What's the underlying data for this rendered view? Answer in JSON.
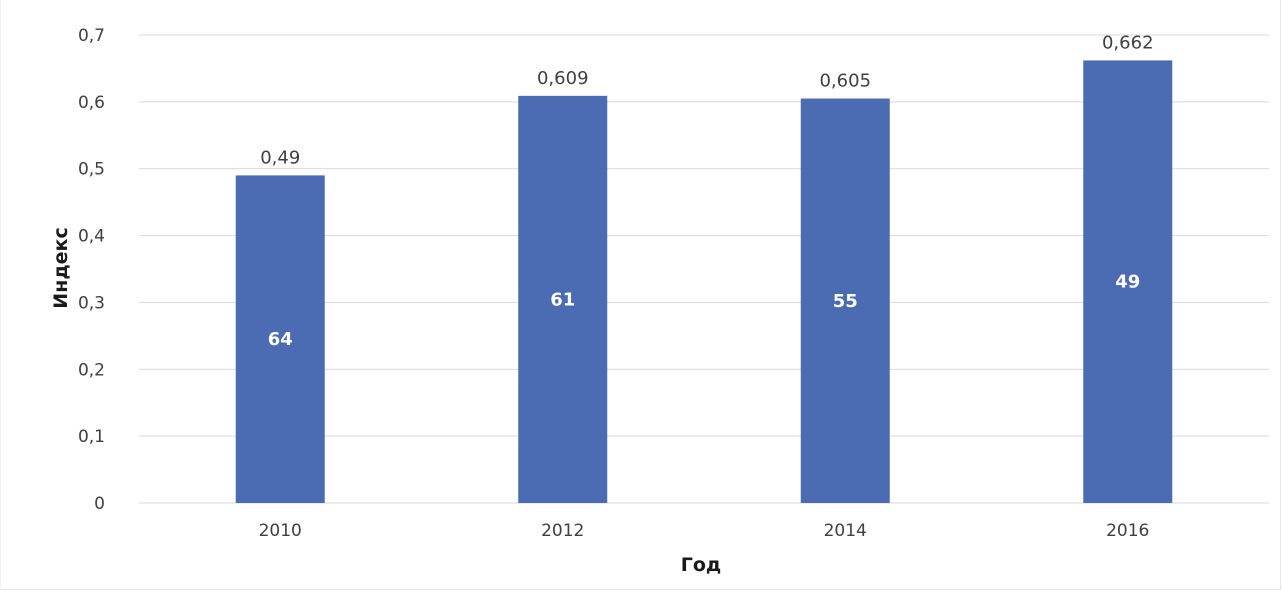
{
  "chart_data": {
    "type": "bar",
    "categories": [
      "2010",
      "2012",
      "2014",
      "2016"
    ],
    "values": [
      0.49,
      0.609,
      0.605,
      0.662
    ],
    "value_labels": [
      "0,49",
      "0,609",
      "0,605",
      "0,662"
    ],
    "inner_labels": [
      "64",
      "61",
      "55",
      "49"
    ],
    "xlabel": "Год",
    "ylabel": "Индекс",
    "ylim": [
      0,
      0.7
    ],
    "yticks": [
      0,
      0.1,
      0.2,
      0.3,
      0.4,
      0.5,
      0.6,
      0.7
    ],
    "ytick_labels": [
      "0",
      "0,1",
      "0,2",
      "0,3",
      "0,4",
      "0,5",
      "0,6",
      "0,7"
    ],
    "grid": true,
    "legend": "none",
    "bar_color": "#4b6bb2",
    "grid_color": "#d9d9d9"
  }
}
